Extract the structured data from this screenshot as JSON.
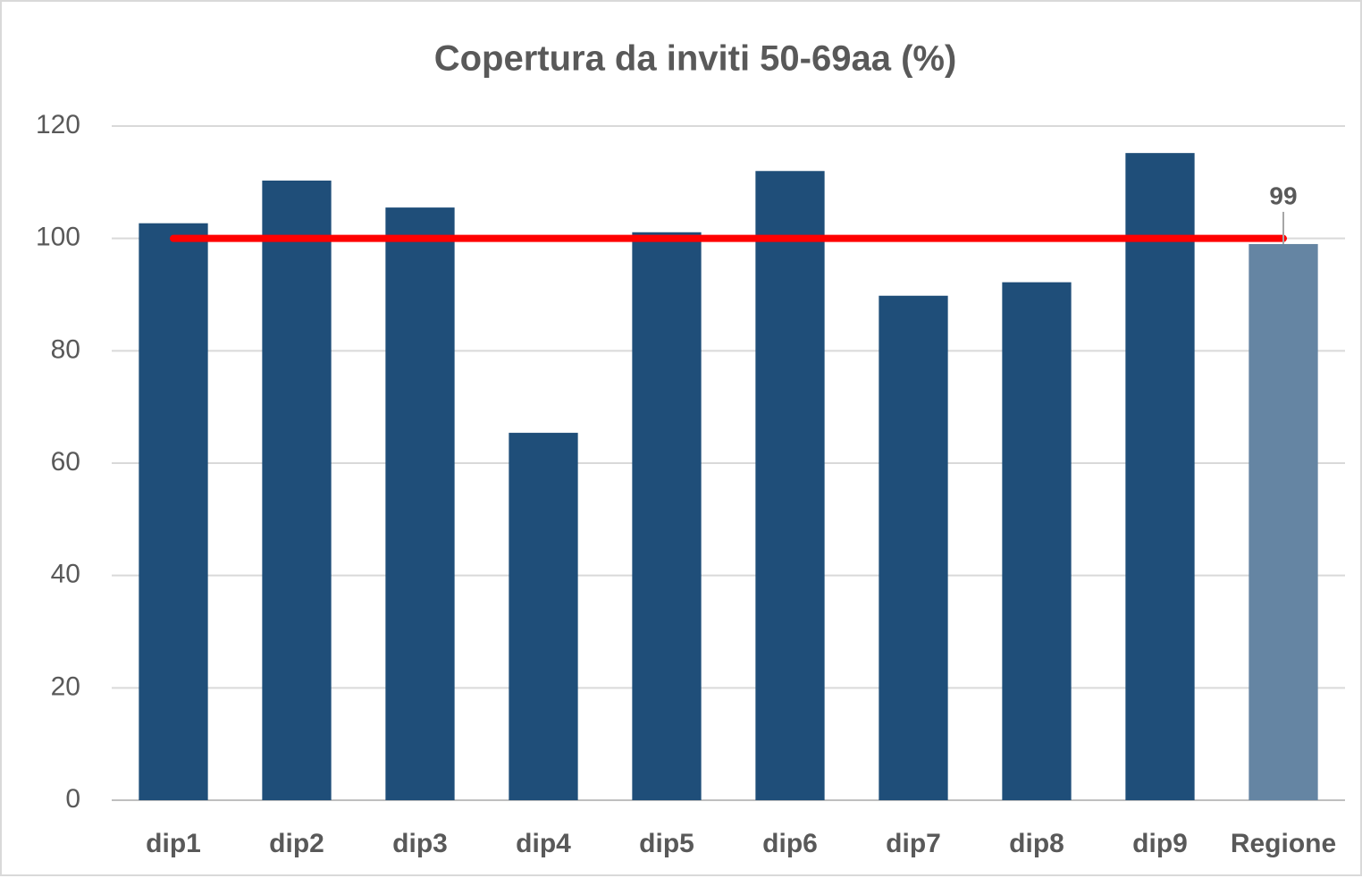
{
  "chart_data": {
    "type": "bar",
    "title": "Copertura da inviti 50-69aa (%)",
    "categories": [
      "dip1",
      "dip2",
      "dip3",
      "dip4",
      "dip5",
      "dip6",
      "dip7",
      "dip8",
      "dip9",
      "Regione"
    ],
    "values": [
      102.7,
      110.3,
      105.5,
      65.4,
      101.1,
      112.0,
      89.8,
      92.2,
      115.2,
      99
    ],
    "value_labels": [
      null,
      null,
      null,
      null,
      null,
      null,
      null,
      null,
      null,
      "99"
    ],
    "colors": [
      "#1f4e79",
      "#1f4e79",
      "#1f4e79",
      "#1f4e79",
      "#1f4e79",
      "#1f4e79",
      "#1f4e79",
      "#1f4e79",
      "#1f4e79",
      "#6585a3"
    ],
    "reference_line": {
      "value": 100,
      "color": "#ff0000"
    },
    "ylim": [
      0,
      120
    ],
    "yticks": [
      0,
      20,
      40,
      60,
      80,
      100,
      120
    ],
    "grid": true
  }
}
